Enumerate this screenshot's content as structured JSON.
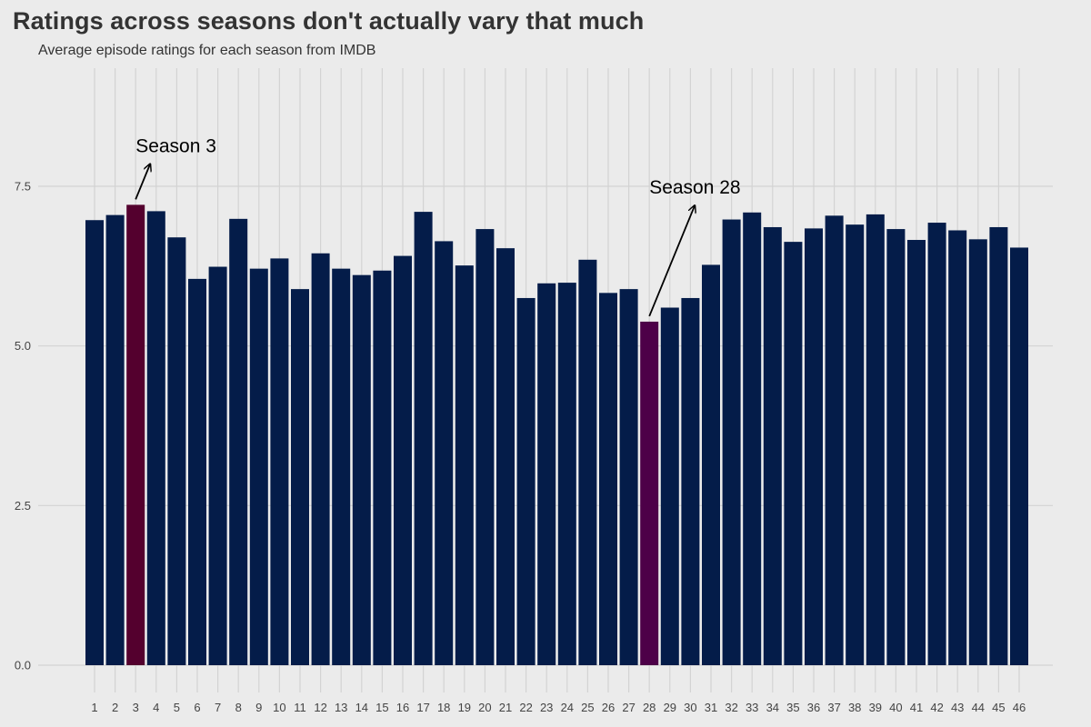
{
  "chart_data": {
    "type": "bar",
    "title": "Ratings across seasons don't actually vary that much",
    "subtitle": "Average episode ratings for each season from IMDB",
    "xlabel": "",
    "ylabel": "",
    "ylim": [
      0,
      9.35
    ],
    "yticks": [
      0,
      2.5,
      5,
      7.5
    ],
    "ytick_labels": [
      "0.0",
      "2.5",
      "5.0",
      "7.5"
    ],
    "grid": true,
    "categories": [
      "1",
      "2",
      "3",
      "4",
      "5",
      "6",
      "7",
      "8",
      "9",
      "10",
      "11",
      "12",
      "13",
      "14",
      "15",
      "16",
      "17",
      "18",
      "19",
      "20",
      "21",
      "22",
      "23",
      "24",
      "25",
      "26",
      "27",
      "28",
      "29",
      "30",
      "31",
      "32",
      "33",
      "34",
      "35",
      "36",
      "37",
      "38",
      "39",
      "40",
      "41",
      "42",
      "43",
      "44",
      "45",
      "46"
    ],
    "values": [
      6.97,
      7.05,
      7.21,
      7.11,
      6.7,
      6.05,
      6.24,
      6.99,
      6.21,
      6.37,
      5.89,
      6.45,
      6.21,
      6.11,
      6.18,
      6.41,
      7.1,
      6.64,
      6.26,
      6.83,
      6.53,
      5.75,
      5.98,
      5.99,
      6.35,
      5.83,
      5.89,
      5.38,
      5.6,
      5.75,
      6.27,
      6.98,
      7.09,
      6.86,
      6.63,
      6.84,
      7.04,
      6.9,
      7.06,
      6.83,
      6.66,
      6.93,
      6.81,
      6.67,
      6.86,
      6.54
    ],
    "colors": {
      "bar": "#041c49",
      "highlight_season_3": "#54002e",
      "highlight_season_28": "#4d0048",
      "grid": "#d3d3d3",
      "background": "#ebebeb"
    },
    "highlights": [
      {
        "season": "3",
        "color_key": "highlight_season_3"
      },
      {
        "season": "28",
        "color_key": "highlight_season_28"
      }
    ],
    "annotations": [
      {
        "label": "Season 3",
        "season": "3",
        "arrow_tip_value": 7.85
      },
      {
        "label": "Season 28",
        "season": "28",
        "arrow_tip_value": 7.2
      }
    ]
  }
}
